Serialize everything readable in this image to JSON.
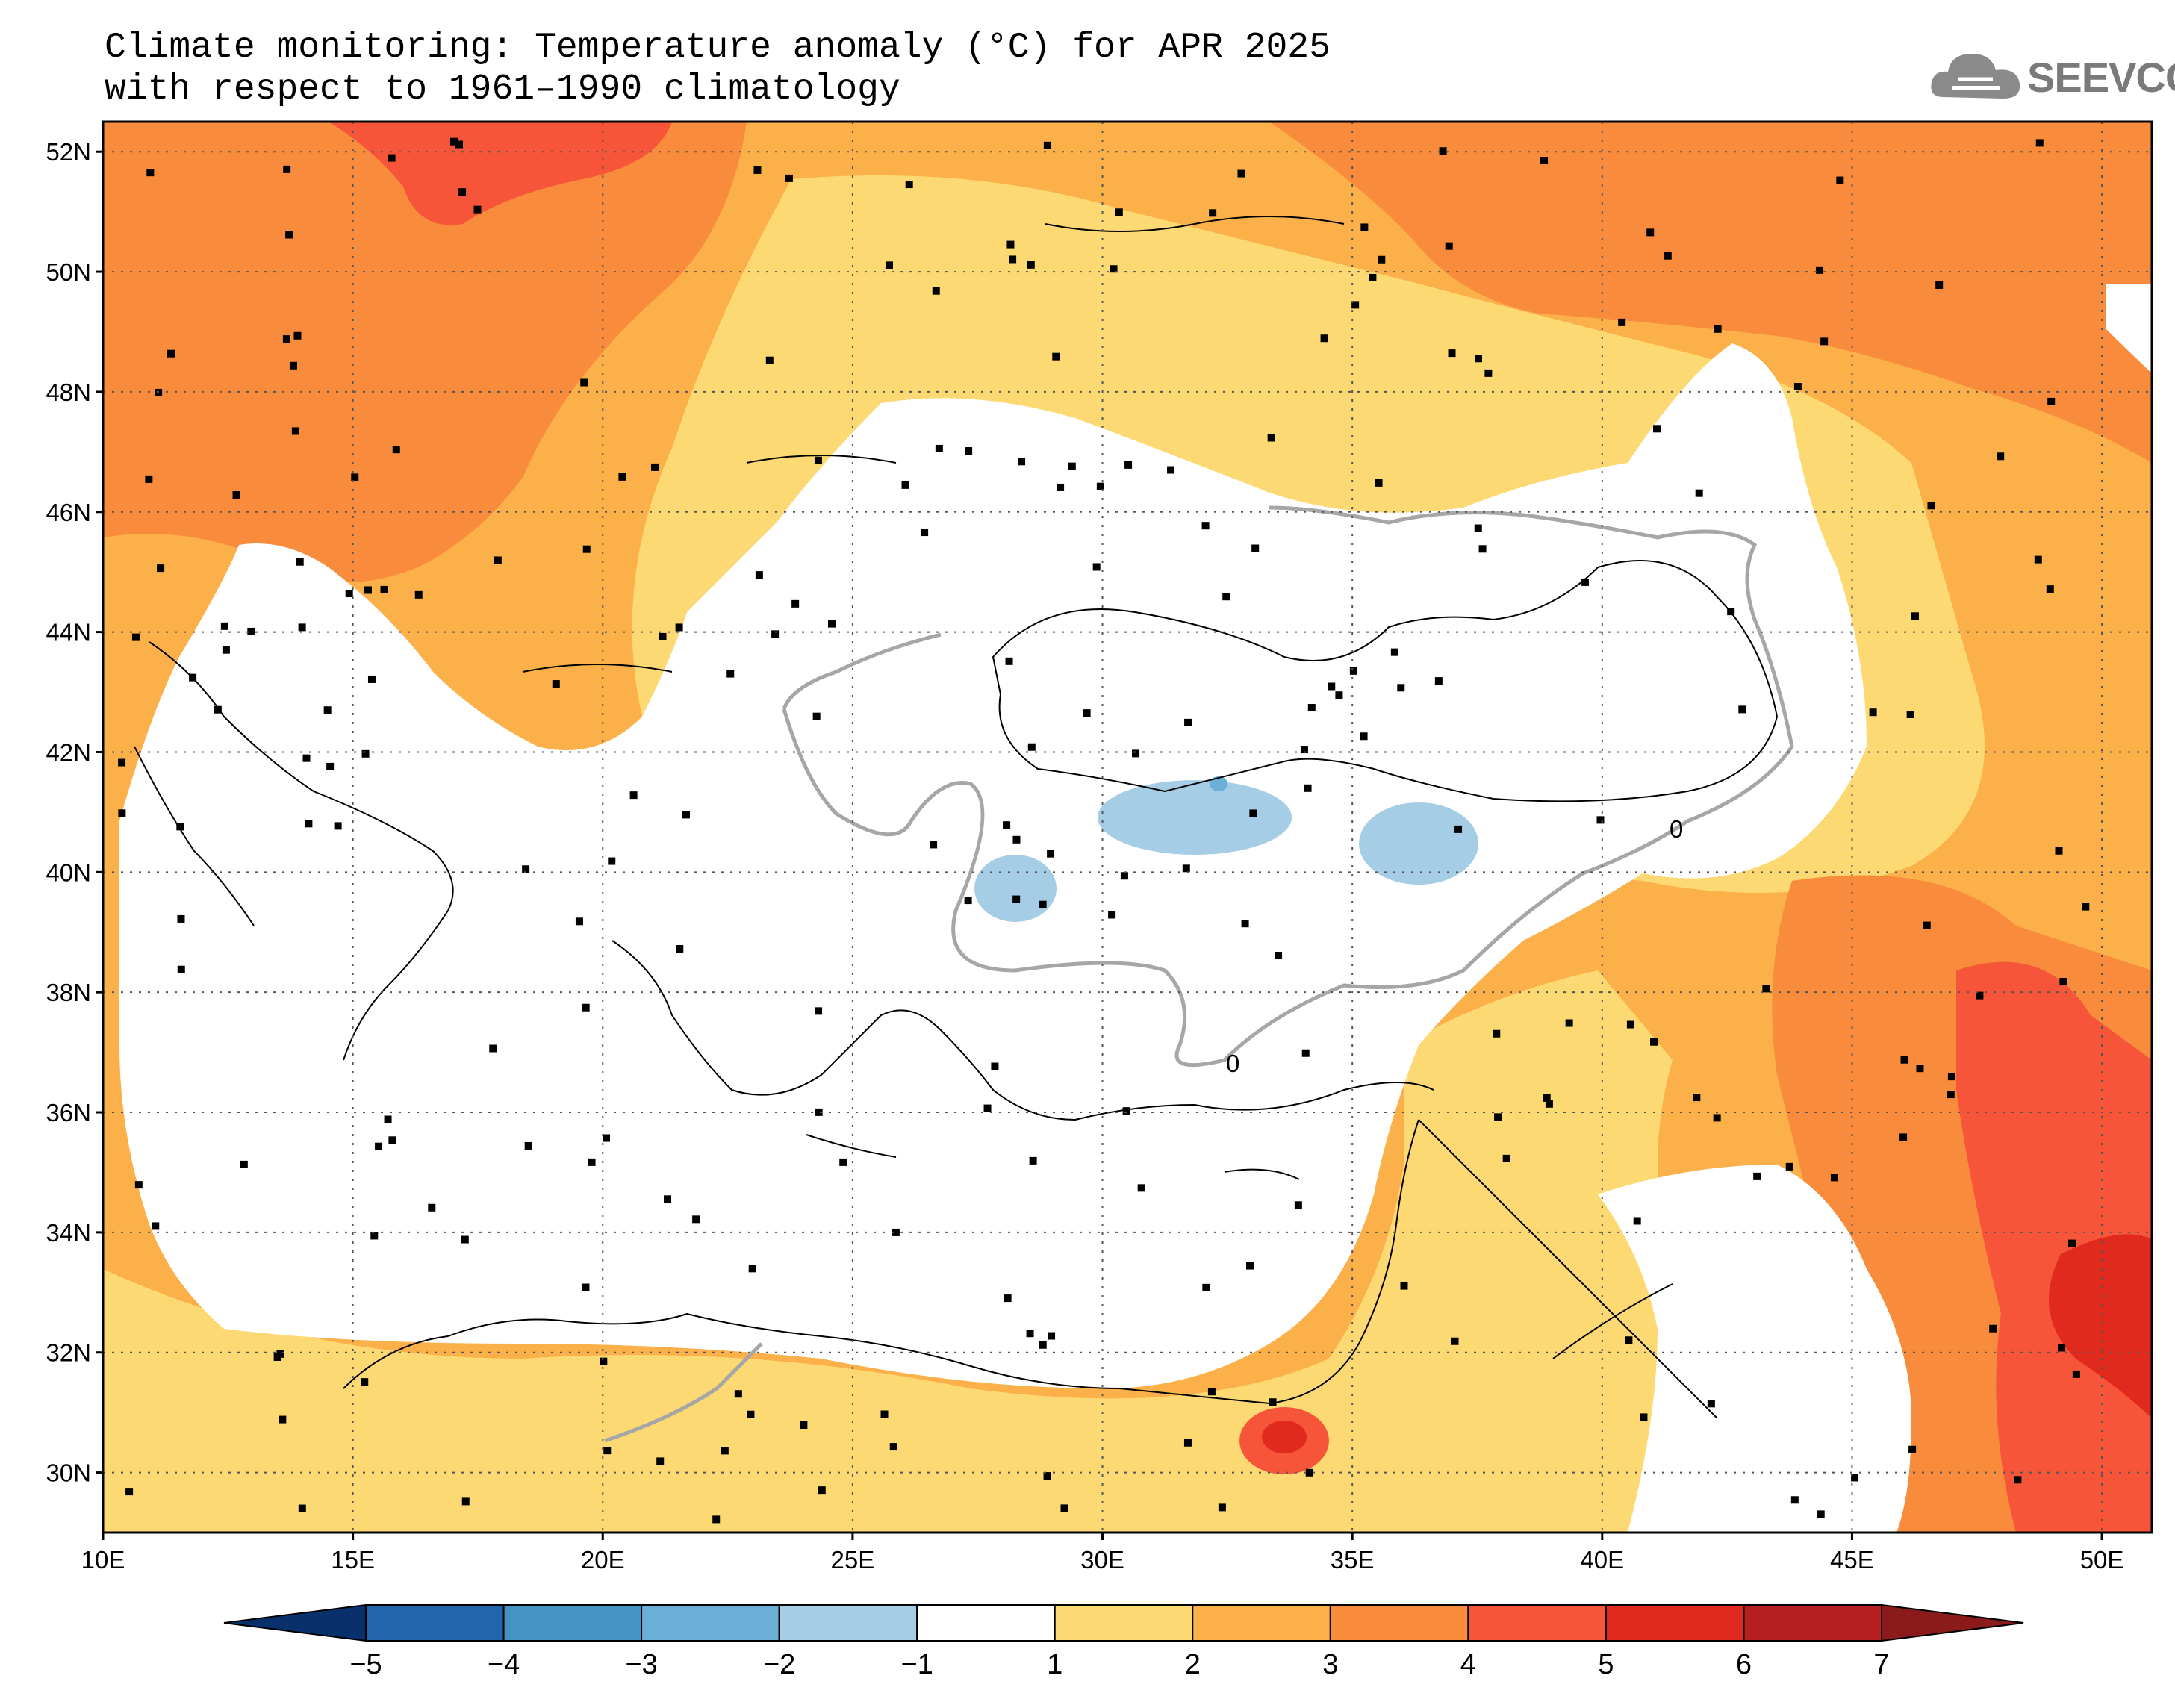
{
  "title": {
    "line1": "Climate monitoring: Temperature anomaly (°C) for APR 2025",
    "line2": "with respect to 1961–1990 climatology"
  },
  "logo": {
    "text": "SEEVCCC",
    "icon": "cloud-icon"
  },
  "map": {
    "lon_range": [
      10,
      51
    ],
    "lat_range": [
      29,
      52.5
    ],
    "x_ticks": [
      "10E",
      "15E",
      "20E",
      "25E",
      "30E",
      "35E",
      "40E",
      "45E",
      "50E"
    ],
    "y_ticks": [
      "30N",
      "32N",
      "34N",
      "36N",
      "38N",
      "40N",
      "42N",
      "44N",
      "46N",
      "48N",
      "50N",
      "52N"
    ],
    "zero_contour_label": "0",
    "colors": {
      "land_outline": "#000000",
      "zero_contour": "#a6a6a6",
      "station_marker": "#000000"
    }
  },
  "colorbar": {
    "labels": [
      "−5",
      "−4",
      "−3",
      "−2",
      "−1",
      "1",
      "2",
      "3",
      "4",
      "5",
      "6",
      "7"
    ],
    "colors": [
      "#08306b",
      "#2166ac",
      "#4393c3",
      "#6baed6",
      "#a6cde6",
      "#ffffff",
      "#fdd974",
      "#fbb04a",
      "#f98b3c",
      "#f6553a",
      "#e02a1e",
      "#b51f1f",
      "#8b1a1a"
    ]
  }
}
